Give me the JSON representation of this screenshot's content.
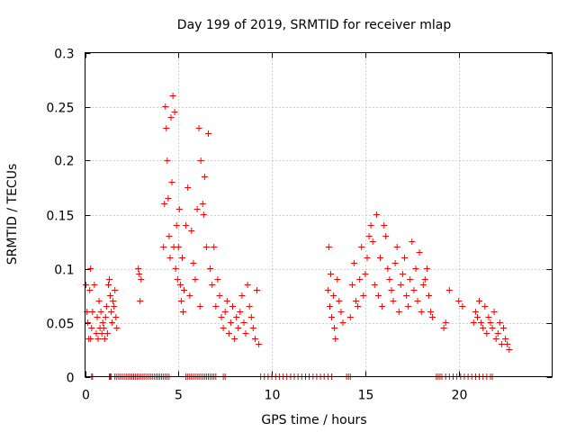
{
  "chart_data": {
    "type": "scatter",
    "title": "Day 199 of 2019, SRMTID for receiver mlap",
    "xlabel": "GPS time / hours",
    "ylabel": "SRMTID / TECUs",
    "xlim": [
      0,
      25
    ],
    "ylim": [
      0,
      0.3
    ],
    "xticks": [
      0,
      5,
      10,
      15,
      20
    ],
    "yticks": [
      0,
      0.05,
      0.1,
      0.15,
      0.2,
      0.25,
      0.3
    ],
    "xtick_labels": [
      "0",
      "5",
      "10",
      "15",
      "20"
    ],
    "ytick_labels": [
      "0",
      "0.05",
      "0.1",
      "0.15",
      "0.2",
      "0.25",
      "0.3"
    ],
    "grid": true,
    "marker": "+",
    "color": "#ff0000",
    "series": [
      {
        "name": "SRMTID",
        "x": [
          0.05,
          0.1,
          0.15,
          0.2,
          0.25,
          0.3,
          0.35,
          0.4,
          0.5,
          0.6,
          0.65,
          0.7,
          0.75,
          0.8,
          0.85,
          0.9,
          0.95,
          1.0,
          1.05,
          1.1,
          1.15,
          1.2,
          1.25,
          1.3,
          1.35,
          1.4,
          1.45,
          1.5,
          1.55,
          1.6,
          1.65,
          1.7,
          2.85,
          2.9,
          2.95,
          3.0,
          4.2,
          4.25,
          4.3,
          4.35,
          4.4,
          4.45,
          4.5,
          4.55,
          4.6,
          4.65,
          4.7,
          4.75,
          4.8,
          4.85,
          4.9,
          4.95,
          5.0,
          5.05,
          5.1,
          5.15,
          5.2,
          5.25,
          5.3,
          5.4,
          5.5,
          5.6,
          5.7,
          5.8,
          5.9,
          6.0,
          6.1,
          6.15,
          6.2,
          6.3,
          6.35,
          6.4,
          6.5,
          6.6,
          6.7,
          6.8,
          6.9,
          7.0,
          7.1,
          7.2,
          7.3,
          7.4,
          7.5,
          7.6,
          7.7,
          7.8,
          7.9,
          8.0,
          8.1,
          8.2,
          8.3,
          8.4,
          8.5,
          8.6,
          8.7,
          8.8,
          8.9,
          9.0,
          9.1,
          9.2,
          9.3,
          13.0,
          13.05,
          13.1,
          13.15,
          13.2,
          13.3,
          13.35,
          13.4,
          13.5,
          13.6,
          13.7,
          13.8,
          14.2,
          14.3,
          14.4,
          14.5,
          14.6,
          14.7,
          14.8,
          14.9,
          15.0,
          15.1,
          15.2,
          15.3,
          15.4,
          15.5,
          15.6,
          15.7,
          15.8,
          15.9,
          16.0,
          16.1,
          16.2,
          16.3,
          16.4,
          16.5,
          16.6,
          16.7,
          16.8,
          16.9,
          17.0,
          17.1,
          17.2,
          17.3,
          17.4,
          17.5,
          17.6,
          17.7,
          17.8,
          17.9,
          18.0,
          18.1,
          18.2,
          18.3,
          18.4,
          18.5,
          18.6,
          19.2,
          19.3,
          19.5,
          20.0,
          20.2,
          20.8,
          20.9,
          21.0,
          21.1,
          21.2,
          21.3,
          21.4,
          21.5,
          21.6,
          21.7,
          21.8,
          21.9,
          22.0,
          22.1,
          22.2,
          22.3,
          22.4,
          22.5,
          22.6,
          22.7,
          0.3,
          0.35,
          0.4,
          1.3,
          1.35,
          1.4,
          1.6,
          1.7,
          1.8,
          1.9,
          2.0,
          2.1,
          2.2,
          2.3,
          2.4,
          2.5,
          2.6,
          2.7,
          2.8,
          2.9,
          3.0,
          3.1,
          3.2,
          3.3,
          3.4,
          3.5,
          3.6,
          3.7,
          3.8,
          3.9,
          4.0,
          4.1,
          4.2,
          4.3,
          4.4,
          4.5,
          5.4,
          5.5,
          5.6,
          5.7,
          5.8,
          5.9,
          6.0,
          6.1,
          6.2,
          6.3,
          6.4,
          6.5,
          6.6,
          6.7,
          6.8,
          6.9,
          7.0,
          7.4,
          7.5,
          9.4,
          9.6,
          9.8,
          10.0,
          10.2,
          10.4,
          10.6,
          10.8,
          11.0,
          11.2,
          11.4,
          11.6,
          11.8,
          12.0,
          12.2,
          12.4,
          12.6,
          12.8,
          13.0,
          13.2,
          14.0,
          14.1,
          14.2,
          18.8,
          18.9,
          19.0,
          19.1,
          19.3,
          19.5,
          19.7,
          19.9,
          20.1,
          20.3,
          20.5,
          20.7,
          20.9,
          21.1,
          21.3,
          21.5,
          21.7,
          21.8
        ],
        "y": [
          0.085,
          0.06,
          0.05,
          0.035,
          0.08,
          0.1,
          0.045,
          0.06,
          0.085,
          0.04,
          0.055,
          0.035,
          0.07,
          0.045,
          0.06,
          0.04,
          0.05,
          0.045,
          0.035,
          0.055,
          0.065,
          0.04,
          0.085,
          0.09,
          0.075,
          0.06,
          0.05,
          0.07,
          0.065,
          0.08,
          0.055,
          0.045,
          0.1,
          0.095,
          0.07,
          0.09,
          0.12,
          0.16,
          0.25,
          0.23,
          0.2,
          0.165,
          0.13,
          0.11,
          0.24,
          0.18,
          0.26,
          0.12,
          0.245,
          0.1,
          0.14,
          0.09,
          0.12,
          0.155,
          0.085,
          0.07,
          0.11,
          0.06,
          0.08,
          0.14,
          0.175,
          0.075,
          0.135,
          0.105,
          0.09,
          0.155,
          0.23,
          0.065,
          0.2,
          0.16,
          0.15,
          0.185,
          0.12,
          0.225,
          0.1,
          0.085,
          0.12,
          0.065,
          0.09,
          0.075,
          0.055,
          0.045,
          0.06,
          0.07,
          0.04,
          0.05,
          0.065,
          0.035,
          0.055,
          0.045,
          0.06,
          0.075,
          0.05,
          0.04,
          0.085,
          0.065,
          0.055,
          0.045,
          0.035,
          0.08,
          0.03,
          0.08,
          0.12,
          0.065,
          0.095,
          0.055,
          0.075,
          0.045,
          0.035,
          0.09,
          0.07,
          0.06,
          0.05,
          0.055,
          0.085,
          0.105,
          0.07,
          0.065,
          0.09,
          0.12,
          0.075,
          0.095,
          0.11,
          0.13,
          0.14,
          0.125,
          0.085,
          0.15,
          0.075,
          0.11,
          0.065,
          0.14,
          0.13,
          0.1,
          0.09,
          0.08,
          0.07,
          0.105,
          0.12,
          0.06,
          0.085,
          0.095,
          0.11,
          0.075,
          0.065,
          0.09,
          0.125,
          0.08,
          0.1,
          0.07,
          0.115,
          0.06,
          0.085,
          0.09,
          0.1,
          0.075,
          0.06,
          0.055,
          0.045,
          0.05,
          0.08,
          0.07,
          0.065,
          0.05,
          0.06,
          0.055,
          0.07,
          0.05,
          0.045,
          0.065,
          0.04,
          0.055,
          0.05,
          0.045,
          0.06,
          0.035,
          0.04,
          0.05,
          0.03,
          0.045,
          0.035,
          0.03,
          0.025,
          0.035,
          0.0,
          0.0,
          0.0,
          0.0,
          0.0,
          0.0,
          0.0,
          0.0,
          0.0,
          0.0,
          0.0,
          0.0,
          0.0,
          0.0,
          0.0,
          0.0,
          0.0,
          0.0,
          0.0,
          0.0,
          0.0,
          0.0,
          0.0,
          0.0,
          0.0,
          0.0,
          0.0,
          0.0,
          0.0,
          0.0,
          0.0,
          0.0,
          0.0,
          0.0,
          0.0,
          0.0,
          0.0,
          0.0,
          0.0,
          0.0,
          0.0,
          0.0,
          0.0,
          0.0,
          0.0,
          0.0,
          0.0,
          0.0,
          0.0,
          0.0,
          0.0,
          0.0,
          0.0,
          0.0,
          0.0,
          0.0,
          0.0,
          0.0,
          0.0,
          0.0,
          0.0,
          0.0,
          0.0,
          0.0,
          0.0,
          0.0,
          0.0,
          0.0,
          0.0,
          0.0,
          0.0,
          0.0,
          0.0,
          0.0,
          0.0,
          0.0,
          0.0,
          0.0,
          0.0,
          0.0,
          0.0,
          0.0,
          0.0,
          0.0,
          0.0,
          0.0,
          0.0,
          0.0,
          0.0,
          0.0,
          0.0,
          0.0,
          0.0,
          0.0,
          0.0
        ]
      }
    ]
  }
}
